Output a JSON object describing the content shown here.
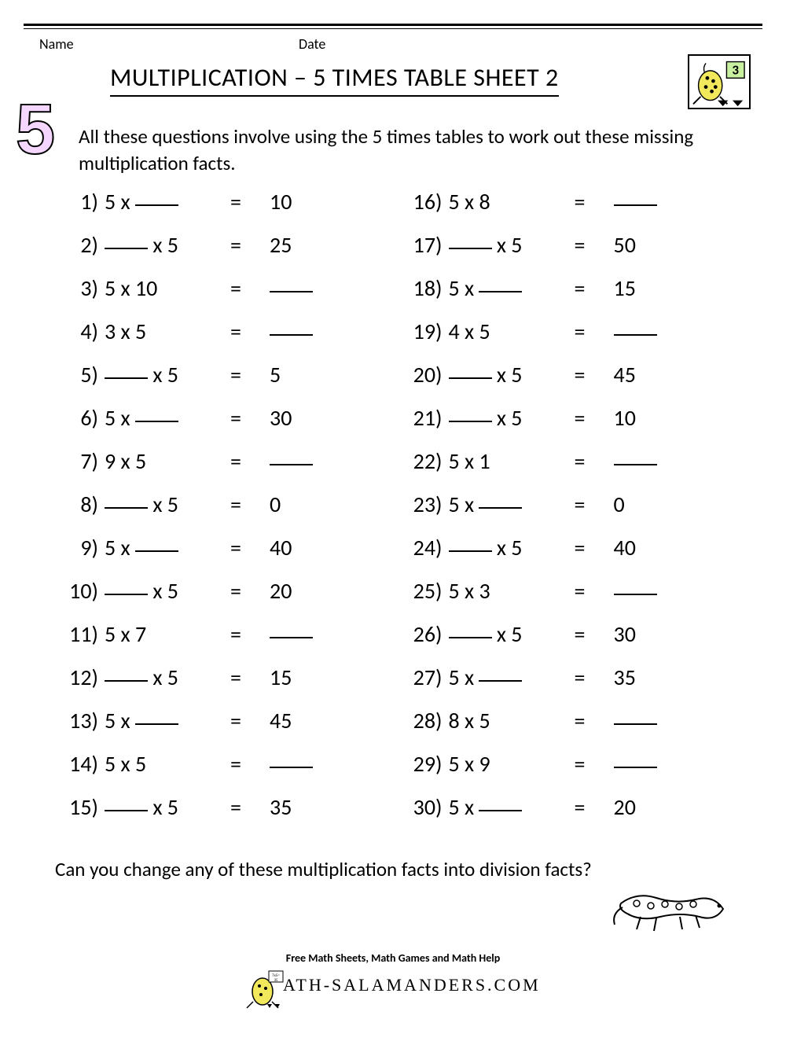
{
  "header": {
    "name_label": "Name",
    "date_label": "Date",
    "big_number": "5",
    "title": "MULTIPLICATION – 5 TIMES TABLE SHEET 2",
    "badge_number": "3"
  },
  "instructions": "All these questions involve using the 5 times tables to work out these missing multiplication facts.",
  "blank_token": "___",
  "problems_left": [
    {
      "n": "1)",
      "a": "5",
      "b": "___",
      "r": "10"
    },
    {
      "n": "2)",
      "a": "___",
      "b": "5",
      "r": "25"
    },
    {
      "n": "3)",
      "a": "5",
      "b": "10",
      "r": "___"
    },
    {
      "n": "4)",
      "a": "3",
      "b": "5",
      "r": "___"
    },
    {
      "n": "5)",
      "a": "___",
      "b": "5",
      "r": "5"
    },
    {
      "n": "6)",
      "a": "5",
      "b": "___",
      "r": "30"
    },
    {
      "n": "7)",
      "a": "9",
      "b": "5",
      "r": "___"
    },
    {
      "n": "8)",
      "a": "___",
      "b": "5",
      "r": "0"
    },
    {
      "n": "9)",
      "a": "5",
      "b": "___",
      "r": "40"
    },
    {
      "n": "10)",
      "a": "___",
      "b": "5",
      "r": "20"
    },
    {
      "n": "11)",
      "a": "5",
      "b": "7",
      "r": "___"
    },
    {
      "n": "12)",
      "a": "___",
      "b": "5",
      "r": "15"
    },
    {
      "n": "13)",
      "a": "5",
      "b": "___",
      "r": "45"
    },
    {
      "n": "14)",
      "a": "5",
      "b": "5",
      "r": "___"
    },
    {
      "n": "15)",
      "a": "___",
      "b": "5",
      "r": "35"
    }
  ],
  "problems_right": [
    {
      "n": "16)",
      "a": "5",
      "b": "8",
      "r": "___"
    },
    {
      "n": "17)",
      "a": "___",
      "b": "5",
      "r": "50"
    },
    {
      "n": "18)",
      "a": "5",
      "b": "___",
      "r": "15"
    },
    {
      "n": "19)",
      "a": "4",
      "b": "5",
      "r": "___"
    },
    {
      "n": "20)",
      "a": "___",
      "b": "5",
      "r": "45"
    },
    {
      "n": "21)",
      "a": "___",
      "b": "5",
      "r": "10"
    },
    {
      "n": "22)",
      "a": "5",
      "b": "1",
      "r": "___"
    },
    {
      "n": "23)",
      "a": "5",
      "b": "___",
      "r": "0"
    },
    {
      "n": "24)",
      "a": "___",
      "b": "5",
      "r": "40"
    },
    {
      "n": "25)",
      "a": "5",
      "b": "3",
      "r": "___"
    },
    {
      "n": "26)",
      "a": "___",
      "b": "5",
      "r": "30"
    },
    {
      "n": "27)",
      "a": "5",
      "b": "___",
      "r": "35"
    },
    {
      "n": "28)",
      "a": "8",
      "b": "5",
      "r": "___"
    },
    {
      "n": "29)",
      "a": "5",
      "b": "9",
      "r": "___"
    },
    {
      "n": "30)",
      "a": "5",
      "b": "___",
      "r": "20"
    }
  ],
  "footer_question": "Can you change any of these multiplication facts into division facts?",
  "site": {
    "line1": "Free Math Sheets, Math Games and Math Help",
    "line2": "ATH-SALAMANDERS.COM"
  },
  "colors": {
    "text": "#000000",
    "bg": "#ffffff",
    "five_fill": "#f5d6ff",
    "salamander_body": "#f2e85c",
    "salamander_spots": "#000000"
  }
}
